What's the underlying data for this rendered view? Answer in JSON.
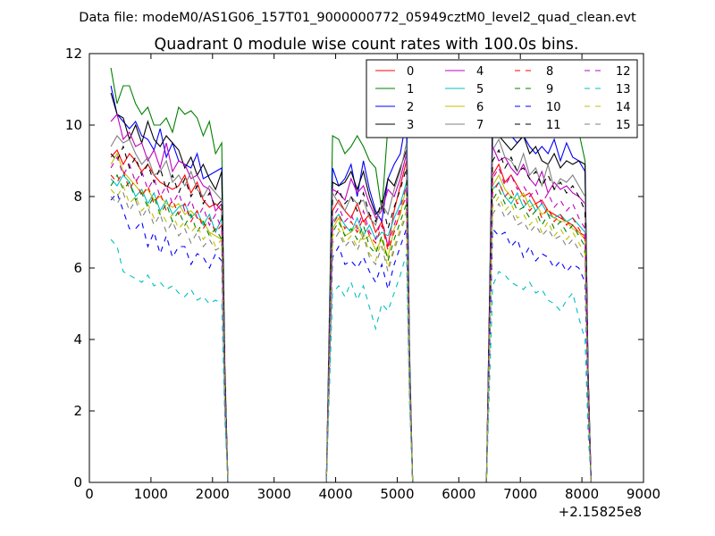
{
  "chart_data": {
    "type": "line",
    "suptitle": "Data file: modeM0/AS1G06_157T01_9000000772_05949cztM0_level2_quad_clean.evt",
    "title": "Quadrant 0 module wise count rates with 100.0s bins.",
    "xlabel": "",
    "ylabel": "",
    "x_offset_label": "+2.15825e8",
    "xlim": [
      0,
      9000
    ],
    "ylim": [
      0,
      12
    ],
    "xticks": [
      0,
      1000,
      2000,
      3000,
      4000,
      5000,
      6000,
      7000,
      8000,
      9000
    ],
    "yticks": [
      0,
      2,
      4,
      6,
      8,
      10,
      12
    ],
    "xtick_labels": [
      "0",
      "1000",
      "2000",
      "3000",
      "4000",
      "5000",
      "6000",
      "7000",
      "8000",
      "9000"
    ],
    "ytick_labels": [
      "0",
      "2",
      "4",
      "6",
      "8",
      "10",
      "12"
    ],
    "legend_position": "top-right",
    "legend_columns": 4,
    "segments": [
      {
        "x_start": 350,
        "x_end": 2150,
        "step": 100
      },
      {
        "x_start": 3950,
        "x_end": 5150,
        "step": 100
      },
      {
        "x_start": 6550,
        "x_end": 8050,
        "step": 100
      }
    ],
    "series": [
      {
        "name": "0",
        "color": "#ff0000",
        "dash": "solid",
        "segments": [
          [
            9.1,
            9.3,
            8.9,
            9.2,
            9.0,
            8.7,
            8.9,
            8.6,
            8.4,
            8.3,
            8.2,
            8.3,
            8.6,
            8.1,
            8.4,
            7.9,
            7.7,
            7.8,
            7.6
          ],
          [
            7.6,
            7.9,
            7.6,
            7.4,
            7.8,
            7.3,
            7.5,
            7.0,
            7.3,
            6.6,
            7.6,
            8.3,
            9.0
          ],
          [
            8.6,
            8.9,
            8.4,
            8.6,
            8.3,
            8.0,
            8.1,
            7.8,
            7.9,
            7.6,
            7.5,
            7.4,
            7.3,
            7.2,
            7.0,
            6.9
          ]
        ]
      },
      {
        "name": "1",
        "color": "#008000",
        "dash": "solid",
        "segments": [
          [
            11.6,
            10.6,
            11.1,
            11.1,
            10.6,
            10.3,
            10.5,
            10.0,
            10.0,
            10.2,
            9.8,
            10.5,
            10.3,
            10.4,
            10.2,
            9.7,
            10.1,
            9.2,
            9.5
          ],
          [
            9.7,
            9.6,
            9.2,
            9.4,
            9.7,
            9.4,
            9.0,
            8.8,
            7.6,
            10.0,
            10.2,
            10.3,
            10.8
          ],
          [
            10.5,
            10.6,
            10.9,
            10.7,
            10.3,
            10.2,
            10.4,
            10.0,
            10.1,
            10.2,
            10.0,
            9.9,
            10.0,
            9.8,
            9.8,
            9.0
          ]
        ]
      },
      {
        "name": "2",
        "color": "#0000ff",
        "dash": "solid",
        "segments": [
          [
            11.1,
            10.3,
            10.1,
            9.9,
            10.1,
            9.7,
            9.6,
            9.3,
            9.9,
            9.1,
            9.5,
            9.0,
            8.9,
            8.8,
            9.2,
            8.5,
            8.6,
            8.7,
            8.8
          ],
          [
            8.8,
            8.3,
            8.5,
            8.9,
            8.0,
            9.0,
            8.2,
            7.6,
            7.3,
            8.5,
            8.9,
            9.2,
            10.2
          ],
          [
            10.2,
            9.9,
            10.0,
            9.7,
            9.5,
            9.7,
            9.4,
            9.2,
            9.4,
            9.2,
            9.6,
            9.0,
            9.5,
            9.1,
            9.0,
            8.7
          ]
        ]
      },
      {
        "name": "3",
        "color": "#000000",
        "dash": "solid",
        "segments": [
          [
            10.9,
            10.3,
            10.2,
            9.6,
            10.0,
            9.5,
            10.1,
            9.6,
            9.4,
            9.7,
            9.5,
            9.3,
            8.8,
            9.1,
            8.6,
            8.9,
            8.5,
            8.2,
            8.7
          ],
          [
            8.4,
            8.3,
            8.4,
            8.7,
            8.2,
            8.7,
            8.0,
            7.5,
            7.7,
            8.5,
            8.3,
            8.8,
            9.3
          ],
          [
            9.9,
            9.7,
            9.5,
            9.3,
            9.5,
            9.7,
            9.2,
            9.4,
            9.0,
            8.9,
            9.2,
            8.8,
            9.0,
            8.9,
            9.0,
            8.9
          ]
        ]
      },
      {
        "name": "4",
        "color": "#bf00bf",
        "dash": "solid",
        "segments": [
          [
            10.1,
            10.3,
            9.6,
            9.8,
            9.4,
            9.5,
            9.0,
            9.3,
            8.8,
            9.5,
            8.7,
            9.0,
            8.9,
            8.5,
            8.6,
            8.3,
            8.2,
            7.6,
            7.8
          ],
          [
            8.2,
            8.1,
            7.9,
            8.5,
            8.1,
            8.3,
            7.8,
            7.4,
            7.6,
            8.2,
            8.0,
            8.5,
            9.2
          ],
          [
            9.4,
            9.0,
            9.1,
            8.8,
            8.6,
            8.9,
            8.5,
            8.3,
            8.7,
            8.1,
            8.4,
            8.2,
            8.3,
            8.1,
            8.0,
            7.8
          ]
        ]
      },
      {
        "name": "5",
        "color": "#00bfbf",
        "dash": "solid",
        "segments": [
          [
            8.5,
            8.3,
            8.6,
            8.4,
            8.0,
            8.2,
            7.8,
            8.1,
            7.6,
            7.9,
            7.5,
            7.7,
            7.8,
            7.4,
            7.6,
            7.2,
            7.5,
            7.0,
            7.4
          ],
          [
            7.3,
            7.5,
            7.2,
            7.0,
            7.4,
            6.9,
            7.2,
            6.8,
            7.0,
            6.9,
            7.4,
            7.8,
            8.4
          ],
          [
            8.2,
            8.4,
            8.0,
            7.8,
            8.1,
            7.7,
            7.9,
            7.6,
            7.8,
            7.5,
            7.4,
            7.5,
            7.3,
            7.4,
            7.2,
            7.0
          ]
        ]
      },
      {
        "name": "6",
        "color": "#bfbf00",
        "dash": "solid",
        "segments": [
          [
            8.9,
            9.2,
            8.7,
            8.5,
            8.3,
            8.1,
            8.2,
            7.9,
            8.0,
            7.8,
            7.7,
            7.8,
            7.5,
            7.6,
            7.4,
            7.3,
            7.0,
            6.9,
            6.8
          ],
          [
            7.1,
            7.4,
            6.9,
            7.0,
            7.2,
            6.8,
            6.9,
            6.5,
            6.8,
            6.3,
            7.1,
            7.5,
            8.3
          ],
          [
            8.3,
            8.6,
            8.2,
            8.0,
            7.9,
            8.1,
            7.7,
            7.8,
            7.5,
            7.6,
            7.4,
            7.3,
            7.3,
            7.1,
            7.0,
            6.8
          ]
        ]
      },
      {
        "name": "7",
        "color": "#808080",
        "dash": "solid",
        "segments": [
          [
            9.4,
            9.7,
            9.5,
            9.6,
            9.2,
            8.9,
            9.1,
            8.6,
            8.7,
            9.0,
            8.4,
            8.6,
            8.3,
            8.7,
            8.2,
            8.0,
            8.3,
            8.1,
            7.9
          ],
          [
            8.1,
            7.8,
            7.6,
            8.0,
            7.8,
            7.9,
            7.4,
            7.2,
            7.8,
            7.5,
            8.2,
            8.7,
            9.5
          ],
          [
            9.3,
            9.6,
            9.1,
            9.0,
            8.7,
            9.2,
            8.6,
            8.8,
            8.3,
            8.9,
            8.2,
            8.5,
            8.4,
            8.6,
            8.3,
            8.0
          ]
        ]
      },
      {
        "name": "8",
        "color": "#ff0000",
        "dash": "dashed",
        "segments": [
          [
            8.6,
            8.4,
            8.7,
            8.2,
            8.5,
            8.0,
            8.3,
            7.8,
            8.1,
            7.6,
            7.9,
            7.5,
            7.8,
            7.3,
            7.6,
            7.1,
            7.4,
            7.0,
            7.2
          ],
          [
            7.2,
            7.5,
            7.1,
            7.3,
            7.0,
            7.4,
            6.9,
            6.7,
            7.2,
            6.5,
            7.0,
            7.6,
            8.0
          ],
          [
            8.1,
            8.4,
            8.0,
            8.2,
            7.8,
            7.9,
            7.6,
            7.8,
            7.4,
            7.7,
            7.3,
            7.5,
            7.2,
            7.4,
            7.1,
            6.8
          ]
        ]
      },
      {
        "name": "9",
        "color": "#008000",
        "dash": "dashed",
        "segments": [
          [
            8.3,
            8.6,
            8.2,
            8.4,
            7.9,
            8.1,
            7.7,
            8.0,
            7.5,
            7.8,
            7.3,
            7.6,
            7.2,
            7.5,
            7.0,
            7.3,
            6.9,
            7.1,
            6.8
          ],
          [
            7.0,
            7.3,
            6.9,
            7.1,
            6.8,
            7.2,
            6.6,
            6.4,
            6.9,
            6.2,
            6.8,
            7.3,
            7.8
          ],
          [
            7.9,
            8.2,
            7.8,
            8.0,
            7.6,
            7.7,
            7.4,
            7.6,
            7.2,
            7.5,
            7.1,
            7.3,
            7.0,
            7.2,
            6.9,
            6.6
          ]
        ]
      },
      {
        "name": "10",
        "color": "#0000ff",
        "dash": "dashed",
        "segments": [
          [
            7.9,
            8.1,
            7.6,
            7.1,
            7.1,
            7.3,
            6.6,
            7.0,
            6.4,
            6.9,
            6.3,
            6.6,
            6.6,
            6.1,
            6.4,
            6.3,
            6.0,
            6.4,
            6.2
          ],
          [
            6.3,
            6.6,
            6.1,
            6.2,
            6.0,
            6.3,
            5.9,
            5.6,
            6.1,
            5.4,
            6.1,
            6.6,
            7.1
          ],
          [
            7.1,
            6.9,
            7.0,
            6.6,
            6.8,
            6.3,
            6.6,
            6.2,
            6.4,
            6.3,
            6.0,
            6.2,
            5.9,
            6.1,
            6.0,
            5.6
          ]
        ]
      },
      {
        "name": "11",
        "color": "#000000",
        "dash": "dashed",
        "segments": [
          [
            9.2,
            9.0,
            9.4,
            8.8,
            9.1,
            8.6,
            8.9,
            8.4,
            8.8,
            8.2,
            8.6,
            8.1,
            8.5,
            8.0,
            8.3,
            7.8,
            8.1,
            7.7,
            7.9
          ],
          [
            7.9,
            8.2,
            7.8,
            8.0,
            7.6,
            8.1,
            7.5,
            7.3,
            7.9,
            7.1,
            7.7,
            8.2,
            8.8
          ],
          [
            9.0,
            9.3,
            8.8,
            9.1,
            8.7,
            8.8,
            8.5,
            8.7,
            8.3,
            8.6,
            8.2,
            8.4,
            8.1,
            8.3,
            8.0,
            7.6
          ]
        ]
      },
      {
        "name": "12",
        "color": "#bf00bf",
        "dash": "dashed",
        "segments": [
          [
            8.8,
            9.1,
            8.6,
            8.9,
            8.4,
            8.7,
            8.2,
            8.5,
            8.0,
            8.3,
            7.8,
            8.1,
            7.6,
            7.9,
            7.4,
            7.7,
            7.2,
            7.5,
            7.1
          ],
          [
            7.4,
            7.7,
            7.3,
            7.5,
            7.1,
            7.6,
            7.0,
            6.8,
            7.4,
            6.6,
            7.2,
            7.7,
            8.3
          ],
          [
            8.5,
            8.8,
            8.3,
            8.6,
            8.2,
            8.3,
            8.0,
            8.2,
            7.8,
            8.1,
            7.7,
            7.9,
            7.6,
            7.8,
            7.4,
            7.1
          ]
        ]
      },
      {
        "name": "13",
        "color": "#00bfbf",
        "dash": "dashed",
        "segments": [
          [
            6.8,
            6.6,
            5.9,
            5.8,
            5.7,
            5.6,
            5.8,
            5.5,
            5.6,
            5.4,
            5.5,
            5.3,
            5.2,
            5.4,
            5.1,
            5.2,
            5.0,
            5.1,
            5.0
          ],
          [
            5.3,
            5.5,
            5.2,
            5.6,
            5.1,
            5.5,
            4.9,
            4.3,
            5.0,
            4.8,
            5.3,
            5.8,
            6.4
          ],
          [
            5.5,
            5.9,
            5.8,
            5.6,
            5.5,
            5.4,
            5.6,
            5.3,
            5.4,
            5.1,
            5.0,
            4.8,
            5.1,
            5.3,
            4.6,
            4.0
          ]
        ]
      },
      {
        "name": "14",
        "color": "#bfbf00",
        "dash": "dashed",
        "segments": [
          [
            8.2,
            8.0,
            8.3,
            7.8,
            8.0,
            7.6,
            7.8,
            7.4,
            7.6,
            7.3,
            7.5,
            7.1,
            7.3,
            7.0,
            7.2,
            6.8,
            7.0,
            6.6,
            6.8
          ],
          [
            6.9,
            7.1,
            6.7,
            6.9,
            6.6,
            7.0,
            6.4,
            6.2,
            6.8,
            6.0,
            6.6,
            7.1,
            7.6
          ],
          [
            7.7,
            8.0,
            7.6,
            7.8,
            7.4,
            7.5,
            7.2,
            7.4,
            7.0,
            7.3,
            6.9,
            7.1,
            6.8,
            7.0,
            6.7,
            6.4
          ]
        ]
      },
      {
        "name": "15",
        "color": "#808080",
        "dash": "dashed",
        "segments": [
          [
            8.0,
            7.8,
            8.1,
            7.6,
            7.9,
            7.4,
            7.7,
            7.2,
            7.5,
            7.0,
            7.3,
            6.9,
            7.1,
            6.7,
            7.0,
            6.6,
            6.8,
            6.5,
            6.6
          ],
          [
            6.7,
            7.0,
            6.6,
            6.8,
            6.5,
            6.9,
            6.3,
            6.1,
            6.6,
            5.9,
            6.5,
            7.0,
            7.5
          ],
          [
            7.5,
            7.8,
            7.4,
            7.6,
            7.2,
            7.3,
            7.0,
            7.2,
            6.9,
            7.1,
            6.8,
            6.9,
            6.6,
            6.8,
            6.5,
            6.2
          ]
        ]
      }
    ]
  }
}
